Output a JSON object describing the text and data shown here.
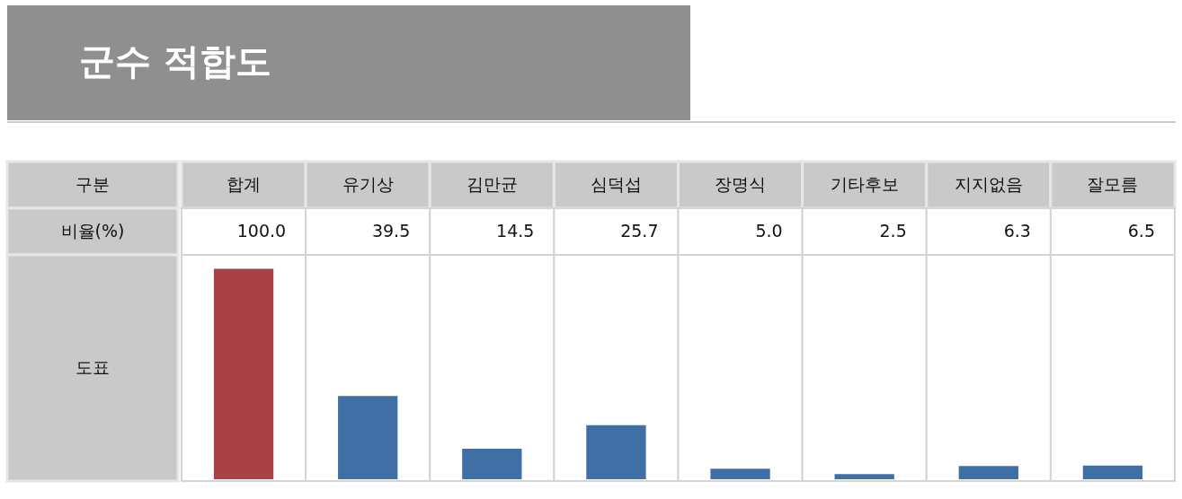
{
  "chart_data": {
    "type": "bar",
    "title": "군수 적합도",
    "categories": [
      "합계",
      "유기상",
      "김만균",
      "심덕섭",
      "장명식",
      "기타후보",
      "지지없음",
      "잘모름"
    ],
    "values": [
      100.0,
      39.5,
      14.5,
      25.7,
      5.0,
      2.5,
      6.3,
      6.5
    ],
    "value_labels": [
      "100.0",
      "39.5",
      "14.5",
      "25.7",
      "5.0",
      "2.5",
      "6.3",
      "6.5"
    ],
    "colors": [
      "#a84246",
      "#3f6fa5",
      "#3f6fa5",
      "#3f6fa5",
      "#3f6fa5",
      "#3f6fa5",
      "#3f6fa5",
      "#3f6fa5"
    ],
    "annotations": [
      "구분",
      "비율(%)",
      "도표"
    ]
  }
}
